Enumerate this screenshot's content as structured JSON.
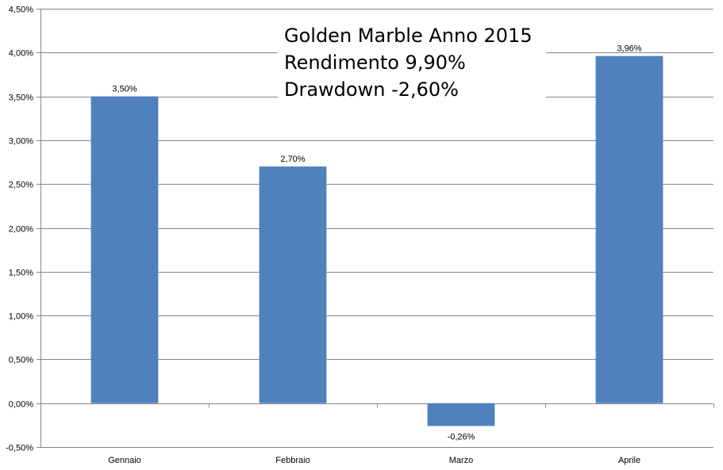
{
  "chart_data": {
    "type": "bar",
    "title_lines": [
      "Golden Marble Anno 2015",
      "Rendimento 9,90%",
      "Drawdown -2,60%"
    ],
    "categories": [
      "Gennaio",
      "Febbraio",
      "Marzo",
      "Aprile"
    ],
    "values": [
      3.5,
      2.7,
      -0.26,
      3.96
    ],
    "data_labels": [
      "3,50%",
      "2,70%",
      "-0,26%",
      "3,96%"
    ],
    "y_ticks": [
      4.5,
      4.0,
      3.5,
      3.0,
      2.5,
      2.0,
      1.5,
      1.0,
      0.5,
      0.0,
      -0.5
    ],
    "y_tick_labels": [
      "4,50%",
      "4,00%",
      "3,50%",
      "3,00%",
      "2,50%",
      "2,00%",
      "1,50%",
      "1,00%",
      "0,50%",
      "0,00%",
      "-0,50%"
    ],
    "ylim": [
      -0.5,
      4.5
    ],
    "grid": true,
    "bar_color": "#4f81bd",
    "gridline_color": "#868686"
  }
}
